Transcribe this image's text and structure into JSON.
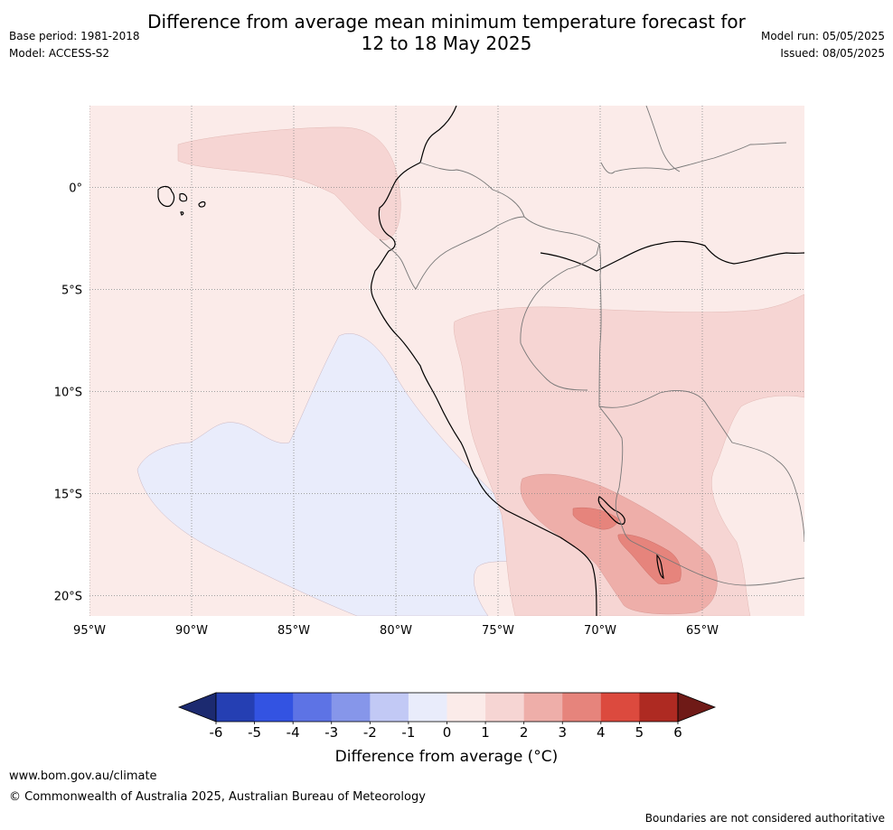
{
  "title_line1": "Difference from average mean minimum temperature forecast for",
  "title_line2": "12 to 18 May 2025",
  "meta": {
    "base_period": "Base period: 1981-2018",
    "model": "Model: ACCESS-S2",
    "model_run": "Model run: 05/05/2025",
    "issued": "Issued: 08/05/2025"
  },
  "map": {
    "lon_range": [
      -95,
      -60
    ],
    "lat_range": [
      -21,
      4
    ],
    "lon_ticks": [
      {
        "value": -95,
        "label": "95°W"
      },
      {
        "value": -90,
        "label": "90°W"
      },
      {
        "value": -85,
        "label": "85°W"
      },
      {
        "value": -80,
        "label": "80°W"
      },
      {
        "value": -75,
        "label": "75°W"
      },
      {
        "value": -70,
        "label": "70°W"
      },
      {
        "value": -65,
        "label": "65°W"
      }
    ],
    "lat_ticks": [
      {
        "value": 0,
        "label": "0°"
      },
      {
        "value": -5,
        "label": "5°S"
      },
      {
        "value": -10,
        "label": "10°S"
      },
      {
        "value": -15,
        "label": "15°S"
      },
      {
        "value": -20,
        "label": "20°S"
      }
    ],
    "background_color": "#fbebe9"
  },
  "colorbar": {
    "title": "Difference from average (°C)",
    "labels": [
      "-6",
      "-5",
      "-4",
      "-3",
      "-2",
      "-1",
      "0",
      "1",
      "2",
      "3",
      "4",
      "5",
      "6"
    ],
    "colors": [
      "#253fb3",
      "#3353e2",
      "#5d73e5",
      "#8696ea",
      "#c2c9f5",
      "#e9ecfb",
      "#fbebe9",
      "#f6d5d3",
      "#eeaea9",
      "#e6847c",
      "#dc4a3e",
      "#ae2a22"
    ],
    "under_color": "#1c2a70",
    "over_color": "#6f1a17"
  },
  "footer": {
    "url": "www.bom.gov.au/climate",
    "copyright": "© Commonwealth of Australia 2025, Australian Bureau of Meteorology",
    "disclaimer": "Boundaries are not considered authoritative"
  }
}
